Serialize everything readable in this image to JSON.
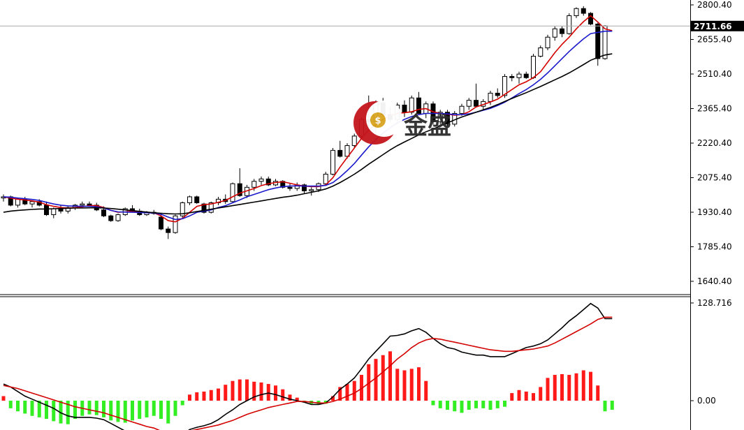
{
  "chart_data": [
    {
      "type": "candlestick",
      "panel": "price",
      "y_ticks": [
        "2800.40",
        "2655.40",
        "2510.40",
        "2365.40",
        "2220.40",
        "2075.40",
        "1930.40",
        "1785.40",
        "1640.40"
      ],
      "ylim": [
        1620,
        2830
      ],
      "current_price": "2711.66",
      "grid": false,
      "candles": [
        [
          1990,
          2005,
          1975,
          1995
        ],
        [
          1995,
          2000,
          1955,
          1960
        ],
        [
          1960,
          1990,
          1950,
          1985
        ],
        [
          1985,
          1995,
          1960,
          1965
        ],
        [
          1965,
          1980,
          1950,
          1975
        ],
        [
          1975,
          1985,
          1955,
          1960
        ],
        [
          1960,
          1975,
          1915,
          1920
        ],
        [
          1920,
          1950,
          1905,
          1945
        ],
        [
          1945,
          1960,
          1925,
          1935
        ],
        [
          1935,
          1955,
          1925,
          1950
        ],
        [
          1950,
          1965,
          1940,
          1960
        ],
        [
          1960,
          1975,
          1950,
          1965
        ],
        [
          1965,
          1975,
          1955,
          1960
        ],
        [
          1960,
          1970,
          1935,
          1940
        ],
        [
          1940,
          1955,
          1910,
          1915
        ],
        [
          1915,
          1920,
          1890,
          1895
        ],
        [
          1895,
          1925,
          1890,
          1920
        ],
        [
          1920,
          1950,
          1915,
          1945
        ],
        [
          1945,
          1960,
          1930,
          1935
        ],
        [
          1935,
          1945,
          1915,
          1920
        ],
        [
          1920,
          1935,
          1915,
          1930
        ],
        [
          1930,
          1940,
          1920,
          1925
        ],
        [
          1910,
          1925,
          1855,
          1860
        ],
        [
          1860,
          1870,
          1818,
          1845
        ],
        [
          1845,
          1920,
          1840,
          1915
        ],
        [
          1915,
          1975,
          1905,
          1970
        ],
        [
          1970,
          2000,
          1960,
          1995
        ],
        [
          1995,
          2000,
          1965,
          1970
        ],
        [
          1965,
          1970,
          1925,
          1930
        ],
        [
          1930,
          1975,
          1925,
          1970
        ],
        [
          1970,
          1995,
          1960,
          1985
        ],
        [
          1985,
          2005,
          1965,
          1975
        ],
        [
          1975,
          2055,
          1970,
          2050
        ],
        [
          2050,
          2115,
          1995,
          2000
        ],
        [
          2000,
          2045,
          1990,
          2035
        ],
        [
          2035,
          2070,
          2020,
          2060
        ],
        [
          2060,
          2080,
          2045,
          2070
        ],
        [
          2070,
          2080,
          2040,
          2045
        ],
        [
          2045,
          2070,
          2040,
          2060
        ],
        [
          2060,
          2065,
          2030,
          2035
        ],
        [
          2035,
          2050,
          2020,
          2030
        ],
        [
          2030,
          2055,
          2020,
          2045
        ],
        [
          2045,
          2050,
          2010,
          2020
        ],
        [
          2020,
          2035,
          2000,
          2025
        ],
        [
          2025,
          2055,
          2015,
          2050
        ],
        [
          2050,
          2100,
          2045,
          2090
        ],
        [
          2090,
          2200,
          2085,
          2190
        ],
        [
          2190,
          2230,
          2160,
          2165
        ],
        [
          2165,
          2220,
          2155,
          2210
        ],
        [
          2210,
          2260,
          2200,
          2250
        ],
        [
          2250,
          2330,
          2240,
          2320
        ],
        [
          2320,
          2420,
          2290,
          2310
        ],
        [
          2310,
          2400,
          2260,
          2390
        ],
        [
          2390,
          2410,
          2330,
          2340
        ],
        [
          2340,
          2370,
          2310,
          2320
        ],
        [
          2320,
          2390,
          2300,
          2380
        ],
        [
          2380,
          2400,
          2330,
          2350
        ],
        [
          2350,
          2420,
          2340,
          2410
        ],
        [
          2410,
          2435,
          2340,
          2345
        ],
        [
          2345,
          2395,
          2325,
          2385
        ],
        [
          2385,
          2395,
          2300,
          2310
        ],
        [
          2310,
          2360,
          2300,
          2350
        ],
        [
          2350,
          2360,
          2290,
          2300
        ],
        [
          2300,
          2355,
          2290,
          2345
        ],
        [
          2345,
          2385,
          2335,
          2375
        ],
        [
          2375,
          2410,
          2360,
          2400
        ],
        [
          2400,
          2470,
          2370,
          2375
        ],
        [
          2375,
          2405,
          2360,
          2395
        ],
        [
          2395,
          2440,
          2380,
          2430
        ],
        [
          2430,
          2450,
          2410,
          2420
        ],
        [
          2420,
          2510,
          2410,
          2500
        ],
        [
          2500,
          2510,
          2480,
          2495
        ],
        [
          2495,
          2520,
          2470,
          2510
        ],
        [
          2510,
          2520,
          2490,
          2495
        ],
        [
          2495,
          2595,
          2490,
          2585
        ],
        [
          2585,
          2630,
          2580,
          2620
        ],
        [
          2620,
          2675,
          2610,
          2665
        ],
        [
          2665,
          2710,
          2650,
          2700
        ],
        [
          2700,
          2710,
          2665,
          2680
        ],
        [
          2680,
          2765,
          2675,
          2755
        ],
        [
          2755,
          2790,
          2745,
          2785
        ],
        [
          2785,
          2795,
          2755,
          2765
        ],
        [
          2765,
          2770,
          2715,
          2720
        ],
        [
          2720,
          2725,
          2545,
          2575
        ],
        [
          2575,
          2715,
          2570,
          2712
        ]
      ],
      "moving_averages": [
        {
          "color": "#d40000",
          "values": [
            1995,
            1990,
            1985,
            1982,
            1978,
            1973,
            1962,
            1955,
            1950,
            1948,
            1950,
            1953,
            1958,
            1958,
            1950,
            1938,
            1930,
            1932,
            1935,
            1932,
            1928,
            1928,
            1915,
            1895,
            1890,
            1905,
            1930,
            1955,
            1962,
            1965,
            1972,
            1980,
            1995,
            2010,
            2020,
            2030,
            2042,
            2050,
            2055,
            2058,
            2052,
            2045,
            2040,
            2038,
            2038,
            2045,
            2075,
            2120,
            2160,
            2200,
            2240,
            2275,
            2300,
            2320,
            2335,
            2345,
            2348,
            2352,
            2362,
            2365,
            2352,
            2345,
            2342,
            2338,
            2340,
            2352,
            2372,
            2382,
            2393,
            2405,
            2425,
            2445,
            2465,
            2478,
            2495,
            2520,
            2560,
            2600,
            2635,
            2665,
            2700,
            2730,
            2755,
            2728,
            2700,
            2692
          ]
        },
        {
          "color": "#1a1acc",
          "values": [
            1995,
            1993,
            1990,
            1987,
            1984,
            1980,
            1972,
            1965,
            1960,
            1957,
            1956,
            1955,
            1955,
            1953,
            1948,
            1938,
            1932,
            1931,
            1930,
            1929,
            1928,
            1927,
            1922,
            1910,
            1900,
            1903,
            1915,
            1930,
            1935,
            1940,
            1950,
            1958,
            1970,
            1982,
            1995,
            2005,
            2015,
            2025,
            2032,
            2038,
            2040,
            2041,
            2040,
            2040,
            2040,
            2043,
            2055,
            2078,
            2105,
            2135,
            2170,
            2205,
            2235,
            2262,
            2285,
            2305,
            2320,
            2332,
            2340,
            2345,
            2345,
            2345,
            2343,
            2340,
            2340,
            2343,
            2350,
            2358,
            2366,
            2378,
            2392,
            2410,
            2428,
            2445,
            2465,
            2488,
            2515,
            2545,
            2575,
            2605,
            2632,
            2658,
            2680,
            2685,
            2690,
            2690
          ]
        },
        {
          "color": "#000000",
          "values": [
            1930,
            1935,
            1938,
            1940,
            1942,
            1944,
            1944,
            1945,
            1946,
            1947,
            1948,
            1948,
            1949,
            1949,
            1948,
            1946,
            1943,
            1940,
            1937,
            1934,
            1931,
            1928,
            1926,
            1924,
            1923,
            1924,
            1928,
            1933,
            1938,
            1943,
            1948,
            1953,
            1958,
            1963,
            1968,
            1973,
            1978,
            1983,
            1988,
            1993,
            1997,
            2002,
            2008,
            2014,
            2020,
            2028,
            2040,
            2055,
            2072,
            2090,
            2110,
            2132,
            2152,
            2172,
            2192,
            2210,
            2225,
            2240,
            2255,
            2268,
            2280,
            2292,
            2305,
            2318,
            2330,
            2340,
            2350,
            2360,
            2370,
            2382,
            2395,
            2408,
            2420,
            2432,
            2445,
            2458,
            2472,
            2486,
            2500,
            2515,
            2532,
            2550,
            2568,
            2580,
            2590,
            2595
          ]
        }
      ]
    },
    {
      "type": "macd",
      "panel": "indicator",
      "y_ticks": [
        "128.716",
        "0.00"
      ],
      "ylim": [
        -95,
        140
      ],
      "grid": false,
      "macd_color": "#000000",
      "signal_color": "#d40000",
      "macd_values": [
        22,
        18,
        12,
        6,
        2,
        -2,
        -6,
        -10,
        -16,
        -20,
        -22,
        -22,
        -22,
        -23,
        -25,
        -30,
        -35,
        -40,
        -43,
        -45,
        -46,
        -48,
        -55,
        -60,
        -55,
        -45,
        -38,
        -35,
        -33,
        -30,
        -25,
        -18,
        -12,
        -5,
        0,
        5,
        8,
        10,
        8,
        5,
        2,
        0,
        -2,
        -5,
        -5,
        -3,
        5,
        15,
        22,
        30,
        42,
        55,
        65,
        75,
        85,
        86,
        88,
        92,
        95,
        90,
        82,
        75,
        70,
        68,
        64,
        62,
        60,
        60,
        58,
        58,
        58,
        62,
        66,
        70,
        72,
        75,
        80,
        88,
        96,
        105,
        112,
        120,
        128,
        122,
        108,
        108
      ],
      "signal_values": [
        20,
        18,
        16,
        13,
        10,
        7,
        4,
        1,
        -2,
        -5,
        -8,
        -10,
        -12,
        -14,
        -16,
        -19,
        -22,
        -25,
        -28,
        -31,
        -34,
        -36,
        -40,
        -42,
        -43,
        -42,
        -40,
        -38,
        -36,
        -34,
        -32,
        -29,
        -26,
        -22,
        -18,
        -15,
        -12,
        -9,
        -7,
        -5,
        -3,
        -1,
        -1,
        -2,
        -3,
        -3,
        -1,
        2,
        6,
        10,
        16,
        23,
        30,
        38,
        46,
        55,
        62,
        70,
        76,
        80,
        82,
        81,
        79,
        77,
        75,
        73,
        71,
        69,
        67,
        66,
        65,
        65,
        66,
        67,
        68,
        70,
        72,
        76,
        81,
        86,
        91,
        96,
        101,
        107,
        110,
        110
      ],
      "histogram": [
        6,
        -10,
        -14,
        -17,
        -20,
        -22,
        -24,
        -27,
        -30,
        -31,
        -24,
        -20,
        -18,
        -19,
        -22,
        -26,
        -28,
        -29,
        -26,
        -24,
        -22,
        -20,
        -24,
        -30,
        -20,
        -6,
        8,
        11,
        12,
        14,
        16,
        21,
        26,
        28,
        28,
        25,
        24,
        22,
        20,
        15,
        8,
        4,
        -2,
        -4,
        -5,
        -4,
        6,
        18,
        22,
        26,
        34,
        48,
        55,
        60,
        65,
        42,
        40,
        42,
        44,
        26,
        -6,
        -10,
        -12,
        -14,
        -16,
        -12,
        -10,
        -10,
        -12,
        -10,
        -8,
        10,
        14,
        12,
        10,
        18,
        30,
        34,
        35,
        34,
        36,
        40,
        38,
        20,
        -14,
        -12
      ]
    }
  ],
  "watermark": {
    "text": "金盛",
    "logo_glyph": "$"
  }
}
